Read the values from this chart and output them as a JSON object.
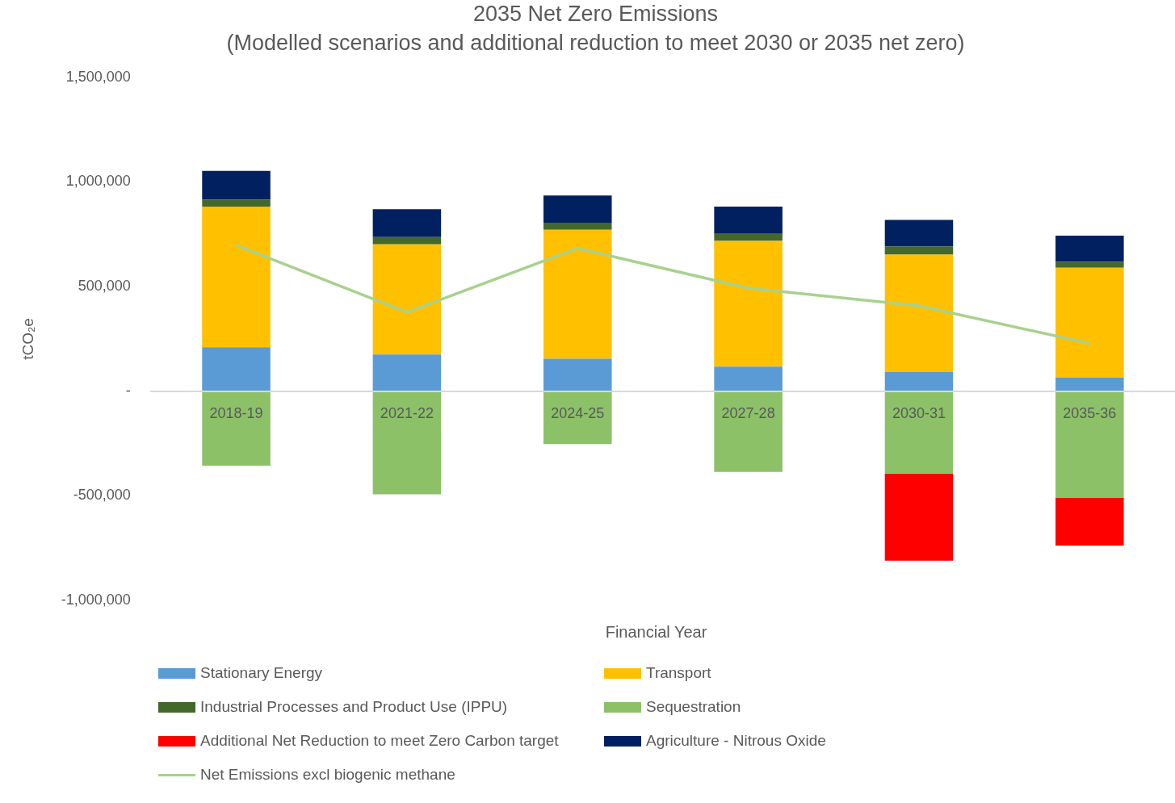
{
  "chart_data": {
    "type": "bar",
    "stacked": true,
    "title": "2035 Net Zero Emissions",
    "subtitle": "(Modelled scenarios and additional reduction to meet 2030 or 2035 net zero)",
    "xlabel": "Financial Year",
    "ylabel": "tCO₂e",
    "categories": [
      "2018-19",
      "2021-22",
      "2024-25",
      "2027-28",
      "2030-31",
      "2035-36"
    ],
    "series": [
      {
        "name": "Stationary Energy",
        "color": "#5b9bd5",
        "values": [
          210000,
          176000,
          156000,
          118000,
          92000,
          65000
        ]
      },
      {
        "name": "Transport",
        "color": "#ffc000",
        "values": [
          672000,
          526000,
          615000,
          600000,
          561000,
          525000
        ]
      },
      {
        "name": "Industrial Processes and Product Use (IPPU)",
        "color": "#43682b",
        "values": [
          34000,
          35000,
          34000,
          34000,
          38000,
          28000
        ]
      },
      {
        "name": "Sequestration",
        "color": "#8cc168",
        "values": [
          -355000,
          -492000,
          -252000,
          -385000,
          -393000,
          -508000
        ]
      },
      {
        "name": "Additional Net Reduction to meet Zero Carbon target",
        "color": "#ff0000",
        "values": [
          null,
          null,
          null,
          null,
          -416000,
          -229000
        ]
      },
      {
        "name": "Agriculture - Nitrous Oxide",
        "color": "#002060",
        "values": [
          137000,
          133000,
          130000,
          130000,
          128000,
          126000
        ]
      },
      {
        "name": "Net Emissions excl biogenic methane",
        "type": "line",
        "color": "#a9d18e",
        "marker": "none",
        "values": [
          698000,
          378000,
          683000,
          493000,
          408000,
          229000
        ]
      }
    ],
    "ylim": [
      -1000000,
      1500000
    ],
    "yticks": [
      {
        "value": -1000000,
        "label": "-1,000,000"
      },
      {
        "value": -500000,
        "label": "-500,000"
      },
      {
        "value": 0,
        "label": "-"
      },
      {
        "value": 500000,
        "label": "500,000"
      },
      {
        "value": 1000000,
        "label": "1,000,000"
      },
      {
        "value": 1500000,
        "label": "1,500,000"
      }
    ],
    "grid": false,
    "legend": "bottom"
  }
}
